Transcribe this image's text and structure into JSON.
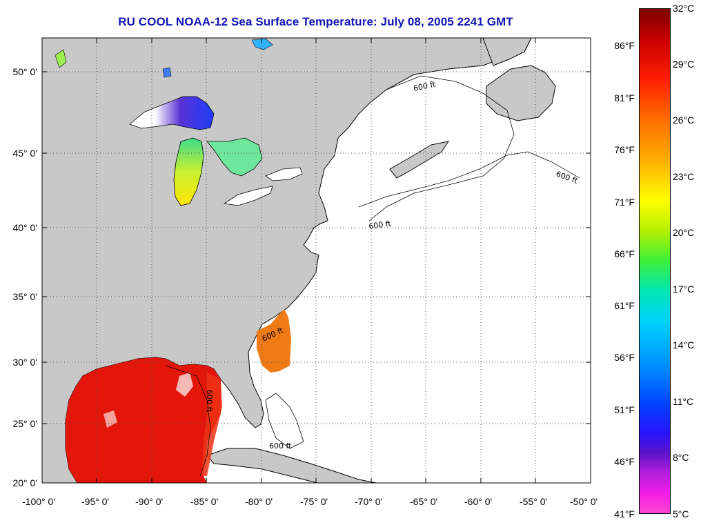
{
  "title": "RU COOL  NOAA-12  Sea Surface Temperature:  July 08, 2005 2241 GMT",
  "lat_labels": [
    "50° 0'",
    "45° 0'",
    "40° 0'",
    "35° 0'",
    "30° 0'",
    "25° 0'",
    "20° 0'"
  ],
  "lon_labels": [
    "-100° 0'",
    "-95° 0'",
    "-90° 0'",
    "-85° 0'",
    "-80° 0'",
    "-75° 0'",
    "-70° 0'",
    "-65° 0'",
    "-60° 0'",
    "-55° 0'",
    "-50° 0'"
  ],
  "colorbar": {
    "celsius": [
      "32°C",
      "29°C",
      "26°C",
      "23°C",
      "20°C",
      "17°C",
      "14°C",
      "11°C",
      "8°C",
      "5°C"
    ],
    "fahrenheit": [
      "86°F",
      "81°F",
      "76°F",
      "71°F",
      "66°F",
      "61°F",
      "56°F",
      "51°F",
      "46°F",
      "41°F"
    ]
  },
  "isobath_label": "600 ft",
  "colors": {
    "land": "#c8c8c8",
    "ocean": "#ffffff",
    "title": "#1414b4"
  }
}
